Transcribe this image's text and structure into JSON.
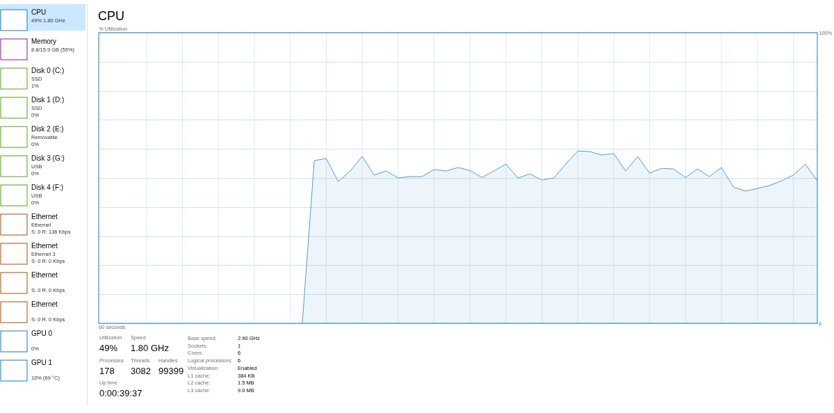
{
  "chart_data": {
    "type": "area",
    "title": "CPU",
    "ylabel": "% Utilization",
    "xlabel": "60 seconds",
    "categories": [
      null,
      null,
      null,
      null,
      null,
      null,
      null,
      null,
      null,
      null,
      null,
      null,
      null,
      null,
      null,
      null,
      null,
      null,
      null,
      null,
      null,
      null,
      null,
      null,
      null,
      null,
      null,
      null,
      null,
      null,
      null,
      null,
      null,
      null,
      null,
      null,
      null,
      null,
      null,
      null,
      null,
      null,
      null,
      null,
      null,
      null,
      null,
      null,
      null,
      null,
      null,
      null,
      null,
      null,
      null,
      null,
      null,
      null,
      null,
      null,
      null
    ],
    "ylim": [
      0,
      100
    ],
    "yticks": [
      {
        "value": 0,
        "label": "0"
      },
      {
        "value": 10,
        "label": null
      },
      {
        "value": 20,
        "label": null
      },
      {
        "value": 30,
        "label": null
      },
      {
        "value": 40,
        "label": null
      },
      {
        "value": 50,
        "label": null
      },
      {
        "value": 60,
        "label": null
      },
      {
        "value": 70,
        "label": null
      },
      {
        "value": 80,
        "label": null
      },
      {
        "value": 90,
        "label": null
      },
      {
        "value": 100,
        "label": "100%"
      }
    ],
    "grid": true,
    "series": [
      {
        "color": "#4c9fd6",
        "values": [
          null,
          null,
          null,
          null,
          null,
          null,
          null,
          null,
          null,
          null,
          null,
          null,
          null,
          null,
          null,
          null,
          null,
          0,
          56,
          56.7,
          48.8,
          52.4,
          57.4,
          51,
          52.4,
          50,
          50.5,
          50.5,
          52.9,
          52.4,
          53.6,
          52.6,
          50.2,
          52.4,
          54.8,
          50,
          51.4,
          49.3,
          50,
          54.8,
          59.3,
          59.1,
          57.9,
          58.4,
          52.4,
          57.4,
          51.7,
          53.3,
          53.1,
          50.2,
          53.1,
          50.5,
          53.6,
          46.9,
          45.5,
          46.4,
          47.4,
          49,
          51,
          54.8,
          49
        ]
      }
    ],
    "annotations": [
      "CPU",
      "49% 1.80 GHz",
      "Memory",
      "8.8/15.9 GB (55%)",
      "Disk 0 (C:)",
      "SSD",
      "1%",
      "Disk 1 (D:)",
      "SSD",
      "0%",
      "Disk 2 (E:)",
      "Removable",
      "0%",
      "Disk 3 (G:)",
      "USB",
      "0%",
      "Disk 4 (F:)",
      "USB",
      "0%",
      "Ethernet",
      "Ethernet",
      "S: 0 R: 136 Kbps",
      "Ethernet",
      "Ethernet 3",
      "S: 0 R: 0 Kbps",
      "Ethernet",
      "S: 0 R: 0 Kbps",
      "Ethernet",
      "S: 0 R: 0 Kbps",
      "GPU 0",
      "0%",
      "GPU 1",
      "10% (69 °C)",
      "Utilization",
      "49%",
      "Speed",
      "1.80 GHz",
      "Processes",
      "178",
      "Threads",
      "3082",
      "Handles",
      "99399",
      "Up time",
      "0:00:39:37",
      "Base speed:",
      "2.90 GHz",
      "Sockets:",
      "1",
      "Cores:",
      "6",
      "Logical processors:",
      "6",
      "Virtualization:",
      "Enabled",
      "L1 cache:",
      "384 KB",
      "L2 cache:",
      "1.5 MB",
      "L3 cache:",
      "9.0 MB"
    ]
  }
}
